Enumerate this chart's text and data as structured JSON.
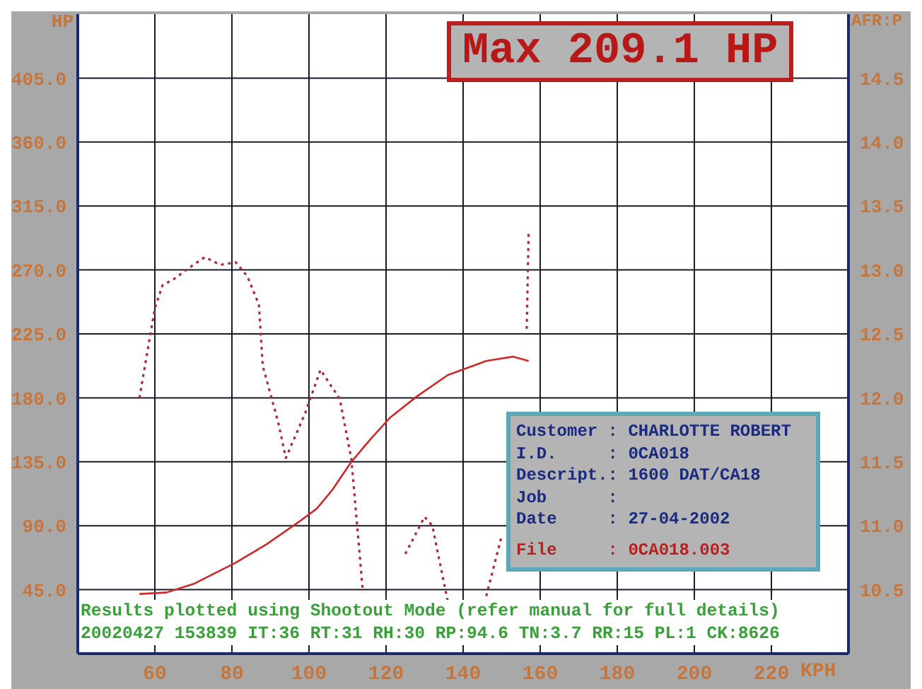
{
  "chart_data": {
    "type": "line",
    "title": "Max 209.1 HP",
    "xlabel": "KPH",
    "ylabel": "HP",
    "y2label": "AFR:P",
    "xlim": [
      40,
      240
    ],
    "xticks": [
      60,
      80,
      100,
      120,
      140,
      160,
      180,
      200,
      220
    ],
    "ylim": [
      0,
      450
    ],
    "yticks": [
      {
        "value": 45,
        "label": "45.0"
      },
      {
        "value": 90,
        "label": "90.0"
      },
      {
        "value": 135,
        "label": "135.0"
      },
      {
        "value": 180,
        "label": "180.0"
      },
      {
        "value": 225,
        "label": "225.0"
      },
      {
        "value": 270,
        "label": "270.0"
      },
      {
        "value": 315,
        "label": "315.0"
      },
      {
        "value": 360,
        "label": "360.0"
      },
      {
        "value": 405,
        "label": "405.0"
      }
    ],
    "y2lim": [
      10,
      15
    ],
    "y2ticks": [
      {
        "value": 10.5,
        "label": "10.5"
      },
      {
        "value": 11,
        "label": "11.0"
      },
      {
        "value": 11.5,
        "label": "11.5"
      },
      {
        "value": 12,
        "label": "12.0"
      },
      {
        "value": 12.5,
        "label": "12.5"
      },
      {
        "value": 13,
        "label": "13.0"
      },
      {
        "value": 13.5,
        "label": "13.5"
      },
      {
        "value": 14,
        "label": "14.0"
      },
      {
        "value": 14.5,
        "label": "14.5"
      }
    ],
    "grid": true,
    "legend": false,
    "series": [
      {
        "color": "#d02828",
        "line_style": "solid",
        "x": [
          56,
          63,
          70,
          81,
          89,
          97,
          102,
          106,
          111,
          116,
          121,
          128,
          136,
          142,
          146,
          153,
          157
        ],
        "values": [
          42,
          43,
          49,
          64,
          77,
          92,
          102,
          115,
          135,
          151,
          166,
          181,
          196,
          202,
          206,
          209,
          206
        ]
      },
      {
        "color": "#b02838",
        "line_style": "dotted",
        "axis": "y2",
        "x": [
          56,
          60,
          62,
          65,
          70,
          73,
          77,
          81,
          84,
          87,
          88,
          92,
          94,
          99,
          103,
          108,
          111,
          114,
          117,
          121,
          125,
          130,
          132,
          136,
          139,
          146,
          150,
          154,
          156.5,
          157
        ],
        "values": [
          12.0,
          12.7,
          12.88,
          12.93,
          13.04,
          13.1,
          13.04,
          13.06,
          12.95,
          12.73,
          12.25,
          11.81,
          11.53,
          11.88,
          12.22,
          11.99,
          11.52,
          10.48,
          null,
          null,
          10.78,
          11.07,
          11.0,
          10.41,
          null,
          10.45,
          10.92,
          null,
          12.54,
          13.3
        ]
      }
    ],
    "annotations": [
      "Results plotted using Shootout Mode (refer manual for full details)",
      "20020427 153839 IT:36 RT:31 RH:30 RP:94.6 TN:3.7 RR:15 PL:1 CK:8626",
      "Customer : CHARLOTTE ROBERT",
      "I.D.     : 0CA018",
      "Descript.: 1600 DAT/CA18",
      "Job      :",
      "Date     : 27-04-2002",
      "File     : 0CA018.003"
    ]
  }
}
